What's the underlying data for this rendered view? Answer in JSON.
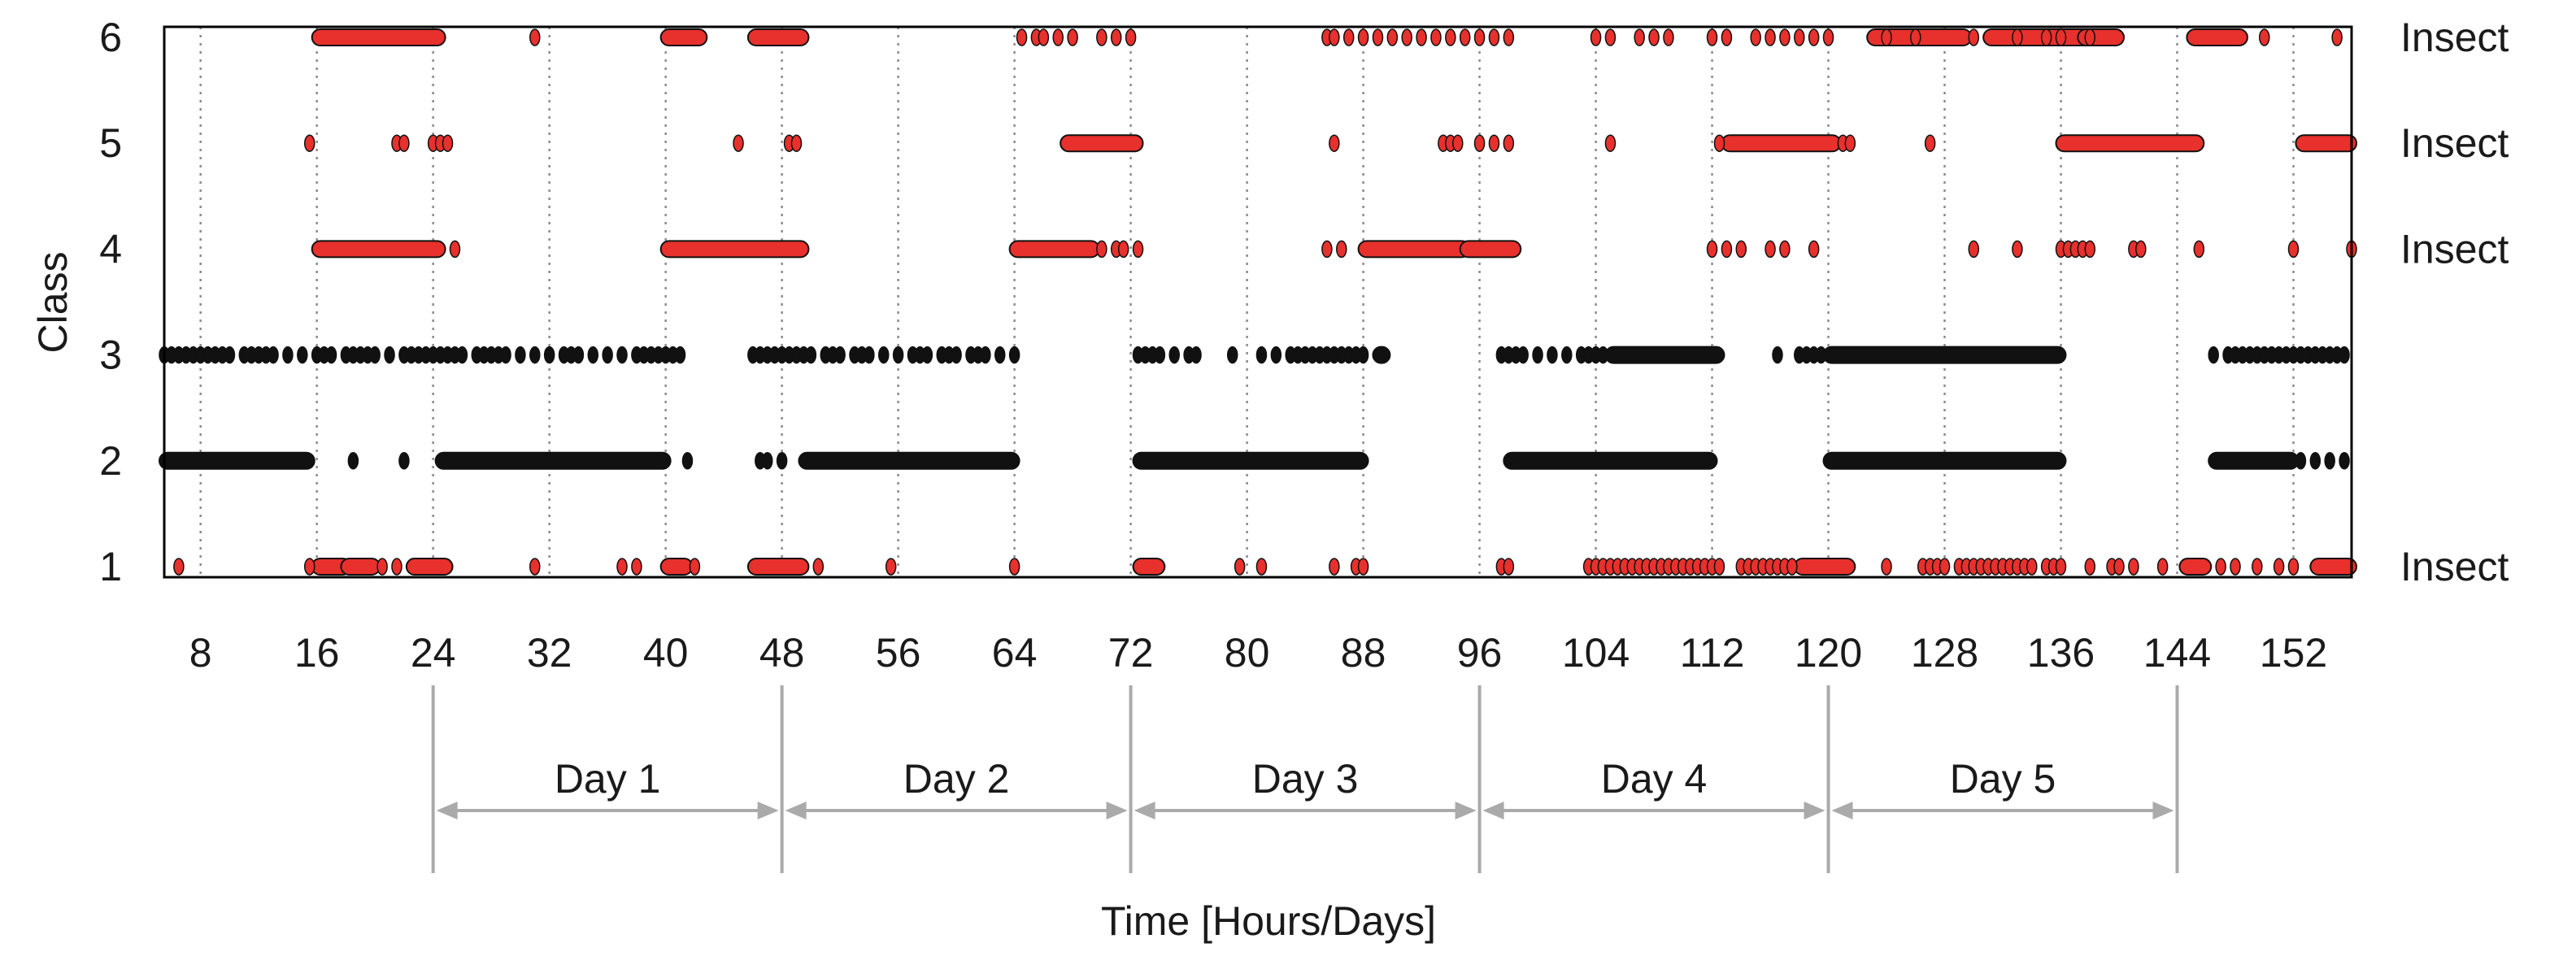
{
  "chart_data": {
    "type": "scatter",
    "title": "",
    "xlabel": "Time [Hours/Days]",
    "ylabel": "Class",
    "xlim": [
      5.5,
      156
    ],
    "ylim": [
      0.9,
      6.1
    ],
    "grid": "vertical dotted at x ticks",
    "x_ticks": [
      8,
      16,
      24,
      32,
      40,
      48,
      56,
      64,
      72,
      80,
      88,
      96,
      104,
      112,
      120,
      128,
      136,
      144,
      152
    ],
    "y_ticks": [
      1,
      2,
      3,
      4,
      5,
      6
    ],
    "right_labels": [
      {
        "y": 6,
        "text": "Insect"
      },
      {
        "y": 5,
        "text": "Insect"
      },
      {
        "y": 4,
        "text": "Insect"
      },
      {
        "y": 1,
        "text": "Insect"
      }
    ],
    "days": [
      {
        "label": "Day 1",
        "from": 24,
        "to": 48
      },
      {
        "label": "Day 2",
        "from": 48,
        "to": 72
      },
      {
        "label": "Day 3",
        "from": 72,
        "to": 96
      },
      {
        "label": "Day 4",
        "from": 96,
        "to": 120
      },
      {
        "label": "Day 5",
        "from": 120,
        "to": 144
      }
    ],
    "colors": {
      "insect": "#e8302c",
      "other": "#111111",
      "grid": "#8c8c8c",
      "day_axis": "#aaaaaa"
    },
    "series": [
      {
        "class": 6,
        "color": "insect",
        "segments": [
          [
            16,
            24.5
          ],
          [
            40,
            42.5
          ],
          [
            46,
            49.5
          ],
          [
            123,
            129.5
          ],
          [
            131,
            139.5
          ],
          [
            145,
            148.5
          ],
          [
            137.5,
            140
          ]
        ],
        "points": [
          31,
          64.5,
          65.5,
          66,
          67,
          68,
          70,
          71,
          72,
          85.5,
          86,
          87,
          88,
          89,
          90,
          91,
          92,
          93,
          94,
          95,
          96,
          97,
          98,
          104,
          105,
          107,
          108,
          109,
          112,
          113,
          115,
          116,
          117,
          118,
          119,
          120,
          124,
          126,
          130,
          133,
          135,
          136,
          138,
          150,
          155
        ]
      },
      {
        "class": 5,
        "color": "insect",
        "segments": [
          [
            67.5,
            72.5
          ],
          [
            113,
            120.5
          ],
          [
            136,
            145.5
          ],
          [
            152.5,
            156
          ]
        ],
        "points": [
          15.5,
          21.5,
          22,
          24,
          24.5,
          25,
          45,
          48.5,
          49,
          86,
          93.5,
          94,
          94.5,
          96,
          97,
          98,
          105,
          112.5,
          121,
          121.5,
          127
        ]
      },
      {
        "class": 4,
        "color": "insect",
        "segments": [
          [
            16,
            24.5
          ],
          [
            40,
            49.5
          ],
          [
            64,
            69.5
          ],
          [
            88,
            95
          ],
          [
            95,
            98.5
          ]
        ],
        "points": [
          25.5,
          70,
          71,
          71.5,
          72.5,
          85.5,
          86.5,
          112,
          113,
          114,
          116,
          117,
          119,
          130,
          133,
          136,
          136.5,
          137,
          137.5,
          138,
          141,
          141.5,
          145.5,
          152,
          156
        ]
      },
      {
        "class": 3,
        "color": "other",
        "segments": [
          [
            105,
            112.5
          ],
          [
            120,
            136
          ],
          [
            89,
            89.5
          ]
        ],
        "points": [
          5.5,
          6,
          6.5,
          7,
          7.5,
          8,
          8.5,
          9,
          9.5,
          10,
          11,
          11.5,
          12,
          12.5,
          13,
          14,
          15,
          16,
          16.5,
          17,
          18,
          18.5,
          19,
          19.5,
          20,
          21,
          22,
          22.5,
          23,
          23.5,
          24,
          24.5,
          25,
          25.5,
          26,
          27,
          27.5,
          28,
          28.5,
          29,
          30,
          31,
          32,
          33,
          33.5,
          34,
          35,
          36,
          37,
          38,
          38.5,
          39,
          39.5,
          40,
          40.5,
          41,
          46,
          46.5,
          47,
          47.5,
          48,
          48.5,
          49,
          49.5,
          50,
          51,
          51.5,
          52,
          53,
          53.5,
          54,
          55,
          56,
          57,
          57.5,
          58,
          59,
          59.5,
          60,
          61,
          61.5,
          62,
          63,
          64,
          72.5,
          73,
          73.5,
          74,
          75,
          76,
          76.5,
          79,
          81,
          82,
          83,
          83.5,
          84,
          84.5,
          85,
          85.5,
          86,
          86.5,
          87,
          87.5,
          88,
          97.5,
          98,
          98.5,
          99,
          100,
          101,
          102,
          103,
          103.5,
          104,
          104.5,
          116.5,
          118,
          118.5,
          119,
          119.5,
          146.5,
          147.5,
          148,
          148.5,
          149,
          149.5,
          150,
          150.5,
          151,
          151.5,
          152,
          152.5,
          153,
          153.5,
          154,
          154.5,
          155,
          155.5
        ]
      },
      {
        "class": 2,
        "color": "other",
        "segments": [
          [
            5.5,
            15.5
          ],
          [
            24.5,
            40
          ],
          [
            49.5,
            64
          ],
          [
            72.5,
            88
          ],
          [
            98,
            112
          ],
          [
            120,
            136
          ],
          [
            146.5,
            152
          ]
        ],
        "points": [
          18.5,
          22,
          41.5,
          46.5,
          47,
          48,
          152.5,
          153.5,
          154.5,
          155.5
        ]
      },
      {
        "class": 1,
        "color": "insect",
        "segments": [
          [
            16,
            18
          ],
          [
            18,
            20
          ],
          [
            22.5,
            25
          ],
          [
            40,
            41.5
          ],
          [
            46,
            49.5
          ],
          [
            72.5,
            74
          ],
          [
            118,
            121.5
          ],
          [
            144.5,
            146
          ],
          [
            153.5,
            156
          ]
        ],
        "points": [
          6.5,
          15.5,
          20.5,
          21.5,
          31,
          37,
          38,
          42,
          50.5,
          55.5,
          64,
          79.5,
          81,
          86,
          87.5,
          88,
          97.5,
          98,
          103.5,
          104,
          104.5,
          105,
          105.5,
          106,
          106.5,
          107,
          107.5,
          108,
          108.5,
          109,
          109.5,
          110,
          110.5,
          111,
          111.5,
          112,
          112.5,
          114,
          114.5,
          115,
          115.5,
          116,
          116.5,
          117,
          117.5,
          124,
          126.5,
          127,
          127.5,
          128,
          129,
          129.5,
          130,
          130.5,
          131,
          131.5,
          132,
          132.5,
          133,
          133.5,
          134,
          135,
          135.5,
          136,
          138,
          139.5,
          140,
          141,
          143,
          147,
          148,
          149.5,
          151,
          152
        ]
      }
    ]
  }
}
